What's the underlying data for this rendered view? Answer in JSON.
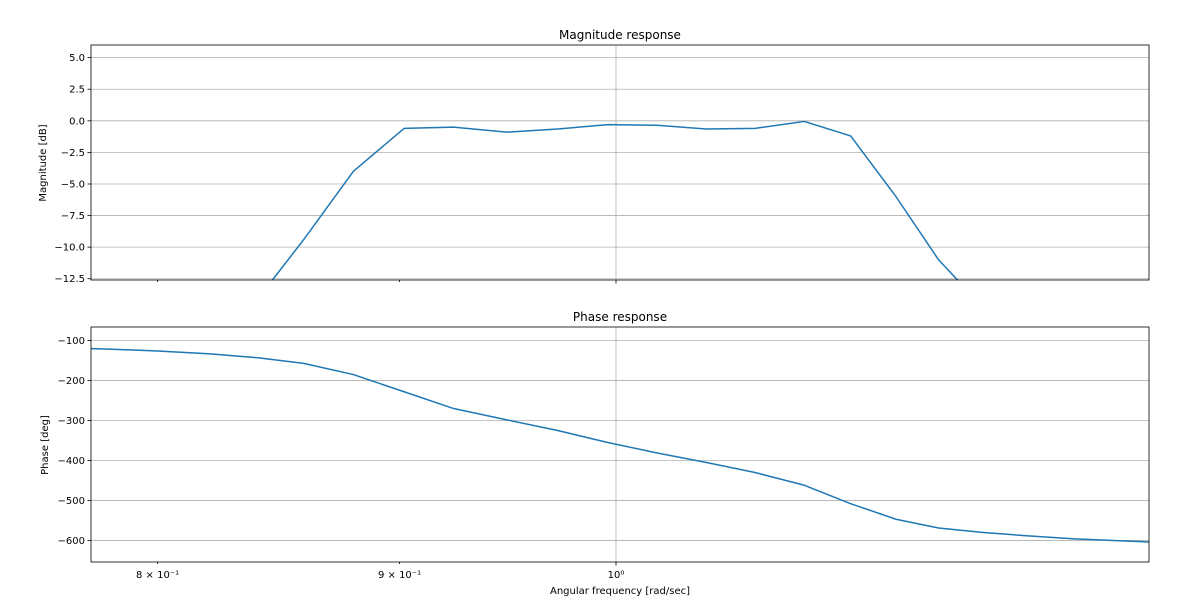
{
  "chart_data": [
    {
      "type": "line",
      "title": "Magnitude response",
      "xlabel": "",
      "ylabel": "Magnitude [dB]",
      "xscale": "log",
      "xlim": [
        0.7745,
        1.2962
      ],
      "ylim": [
        -12.6,
        6.0
      ],
      "grid": true,
      "yticks": [
        5.0,
        2.5,
        0.0,
        -2.5,
        -5.0,
        -7.5,
        -10.0,
        -12.5
      ],
      "ytick_labels": [
        "5.0",
        "2.5",
        "0.0",
        "−2.5",
        "−5.0",
        "−7.5",
        "−10.0",
        "−12.5"
      ],
      "xticks": [
        0.8,
        0.9,
        1.0
      ],
      "xtick_labels": [
        "",
        "",
        ""
      ],
      "series": [
        {
          "color": "#1f77b4",
          "x": [
            0.7745,
            0.8,
            0.82,
            0.84,
            0.846,
            0.859,
            0.88,
            0.902,
            0.924,
            0.948,
            0.972,
            0.996,
            1.02,
            1.045,
            1.07,
            1.096,
            1.121,
            1.146,
            1.17,
            1.187,
            1.2962
          ],
          "y": [
            -13.5,
            -13.5,
            -13.5,
            -13.5,
            -12.6,
            -9.4,
            -4.0,
            -0.6,
            -0.5,
            -0.9,
            -0.65,
            -0.3,
            -0.35,
            -0.65,
            -0.6,
            -0.05,
            -1.2,
            -6.0,
            -11.0,
            -13.5,
            -13.5
          ]
        }
      ]
    },
    {
      "type": "line",
      "title": "Phase response",
      "xlabel": "Angular frequency [rad/sec]",
      "ylabel": "Phase [deg]",
      "xscale": "log",
      "xlim": [
        0.7745,
        1.2962
      ],
      "ylim": [
        -654,
        -66
      ],
      "grid": true,
      "yticks": [
        -100,
        -200,
        -300,
        -400,
        -500,
        -600
      ],
      "ytick_labels": [
        "−100",
        "−200",
        "−300",
        "−400",
        "−500",
        "−600"
      ],
      "xticks": [
        0.8,
        0.9,
        1.0
      ],
      "xtick_labels": [
        "8 × 10⁻¹",
        "9 × 10⁻¹",
        "10⁰"
      ],
      "series": [
        {
          "color": "#1f77b4",
          "x": [
            0.7745,
            0.78,
            0.8,
            0.82,
            0.84,
            0.859,
            0.88,
            0.902,
            0.924,
            0.948,
            0.972,
            0.996,
            1.02,
            1.045,
            1.07,
            1.096,
            1.121,
            1.146,
            1.17,
            1.195,
            1.22,
            1.25,
            1.2962
          ],
          "y": [
            -120,
            -121,
            -126,
            -133,
            -143,
            -157,
            -185,
            -228,
            -270,
            -298,
            -325,
            -355,
            -381,
            -405,
            -430,
            -462,
            -508,
            -547,
            -569,
            -580,
            -588,
            -596,
            -604
          ]
        }
      ]
    }
  ]
}
